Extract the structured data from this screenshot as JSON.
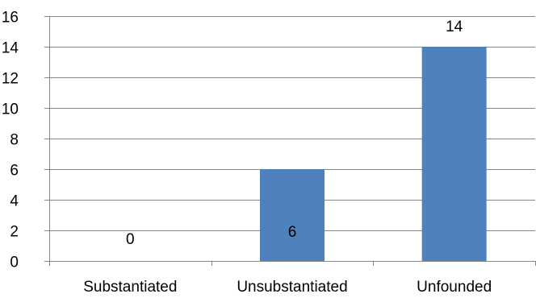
{
  "chart_data": {
    "type": "bar",
    "categories": [
      "Substantiated",
      "Unsubstantiated",
      "Unfounded"
    ],
    "values": [
      0,
      6,
      14
    ],
    "data_labels": [
      "0",
      "6",
      "14"
    ],
    "title": "",
    "xlabel": "",
    "ylabel": "",
    "ylim": [
      0,
      16
    ],
    "yticks": [
      0,
      2,
      4,
      6,
      8,
      10,
      12,
      14,
      16
    ],
    "ytick_labels": [
      "0",
      "2",
      "4",
      "6",
      "8",
      "10",
      "12",
      "14",
      "16"
    ],
    "grid": true,
    "legend": "none",
    "bar_color": "#4F81BD",
    "axis_color": "#868686",
    "text_color": "#000000"
  }
}
